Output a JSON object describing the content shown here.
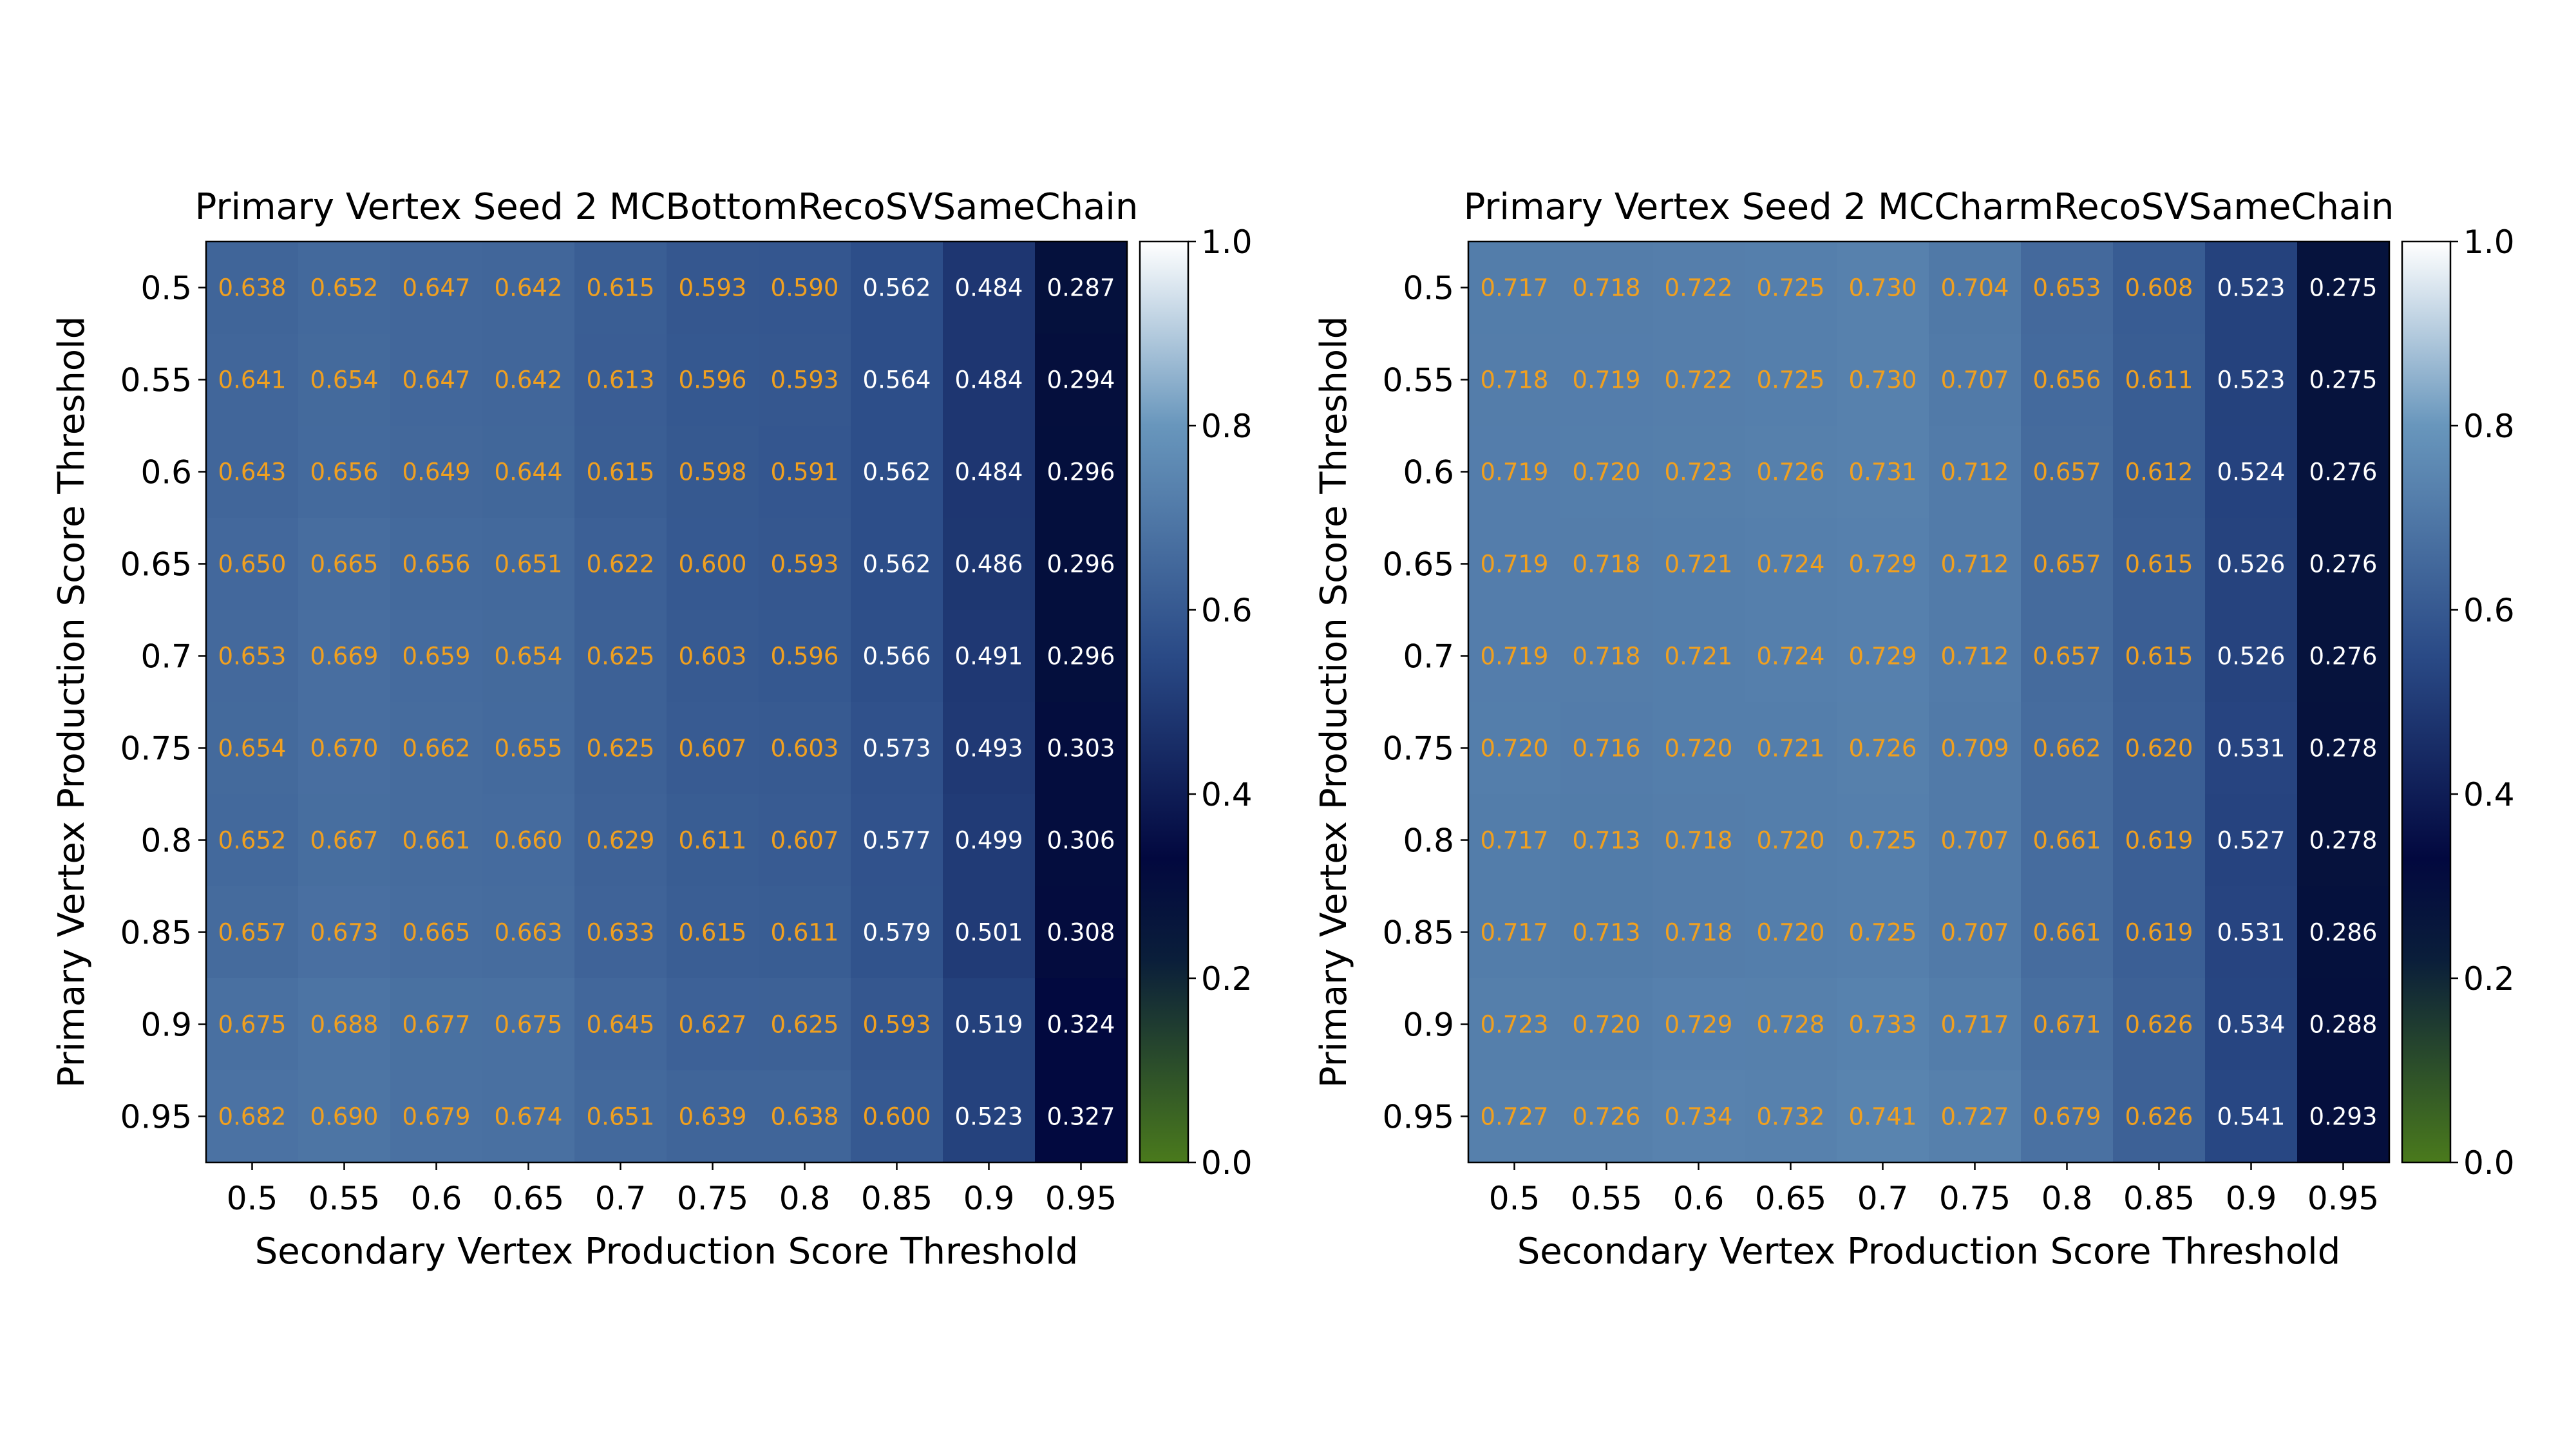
{
  "colorbar": {
    "ticks": [
      0.0,
      0.2,
      0.4,
      0.6,
      0.8,
      1.0
    ],
    "tick_labels": [
      "0.0",
      "0.2",
      "0.4",
      "0.6",
      "0.8",
      "1.0"
    ],
    "colors": [
      "#4a7a1c",
      "#0a1e3a",
      "#02083f",
      "#2a4a86",
      "#6896bc",
      "#ffffff"
    ],
    "stops": [
      0.0,
      0.22,
      0.33,
      0.55,
      0.8,
      1.0
    ]
  },
  "annotation_colors": {
    "light_cell": "#f0a020",
    "dark_cell": "#ffffff",
    "threshold": 0.58
  },
  "chart_data": [
    {
      "type": "heatmap",
      "title": "Primary Vertex Seed 2 MCBottomRecoSVSameChain",
      "xlabel": "Secondary Vertex Production Score Threshold",
      "ylabel": "Primary Vertex Production Score Threshold",
      "x_labels": [
        "0.5",
        "0.55",
        "0.6",
        "0.65",
        "0.7",
        "0.75",
        "0.8",
        "0.85",
        "0.9",
        "0.95"
      ],
      "y_labels": [
        "0.5",
        "0.55",
        "0.6",
        "0.65",
        "0.7",
        "0.75",
        "0.8",
        "0.85",
        "0.9",
        "0.95"
      ],
      "vmin": 0.0,
      "vmax": 1.0,
      "values": [
        [
          "0.638",
          "0.652",
          "0.647",
          "0.642",
          "0.615",
          "0.593",
          "0.590",
          "0.562",
          "0.484",
          "0.287"
        ],
        [
          "0.641",
          "0.654",
          "0.647",
          "0.642",
          "0.613",
          "0.596",
          "0.593",
          "0.564",
          "0.484",
          "0.294"
        ],
        [
          "0.643",
          "0.656",
          "0.649",
          "0.644",
          "0.615",
          "0.598",
          "0.591",
          "0.562",
          "0.484",
          "0.296"
        ],
        [
          "0.650",
          "0.665",
          "0.656",
          "0.651",
          "0.622",
          "0.600",
          "0.593",
          "0.562",
          "0.486",
          "0.296"
        ],
        [
          "0.653",
          "0.669",
          "0.659",
          "0.654",
          "0.625",
          "0.603",
          "0.596",
          "0.566",
          "0.491",
          "0.296"
        ],
        [
          "0.654",
          "0.670",
          "0.662",
          "0.655",
          "0.625",
          "0.607",
          "0.603",
          "0.573",
          "0.493",
          "0.303"
        ],
        [
          "0.652",
          "0.667",
          "0.661",
          "0.660",
          "0.629",
          "0.611",
          "0.607",
          "0.577",
          "0.499",
          "0.306"
        ],
        [
          "0.657",
          "0.673",
          "0.665",
          "0.663",
          "0.633",
          "0.615",
          "0.611",
          "0.579",
          "0.501",
          "0.308"
        ],
        [
          "0.675",
          "0.688",
          "0.677",
          "0.675",
          "0.645",
          "0.627",
          "0.625",
          "0.593",
          "0.519",
          "0.324"
        ],
        [
          "0.682",
          "0.690",
          "0.679",
          "0.674",
          "0.651",
          "0.639",
          "0.638",
          "0.600",
          "0.523",
          "0.327"
        ]
      ]
    },
    {
      "type": "heatmap",
      "title": "Primary Vertex Seed 2 MCCharmRecoSVSameChain",
      "xlabel": "Secondary Vertex Production Score Threshold",
      "ylabel": "Primary Vertex Production Score Threshold",
      "x_labels": [
        "0.5",
        "0.55",
        "0.6",
        "0.65",
        "0.7",
        "0.75",
        "0.8",
        "0.85",
        "0.9",
        "0.95"
      ],
      "y_labels": [
        "0.5",
        "0.55",
        "0.6",
        "0.65",
        "0.7",
        "0.75",
        "0.8",
        "0.85",
        "0.9",
        "0.95"
      ],
      "vmin": 0.0,
      "vmax": 1.0,
      "values": [
        [
          "0.717",
          "0.718",
          "0.722",
          "0.725",
          "0.730",
          "0.704",
          "0.653",
          "0.608",
          "0.523",
          "0.275"
        ],
        [
          "0.718",
          "0.719",
          "0.722",
          "0.725",
          "0.730",
          "0.707",
          "0.656",
          "0.611",
          "0.523",
          "0.275"
        ],
        [
          "0.719",
          "0.720",
          "0.723",
          "0.726",
          "0.731",
          "0.712",
          "0.657",
          "0.612",
          "0.524",
          "0.276"
        ],
        [
          "0.719",
          "0.718",
          "0.721",
          "0.724",
          "0.729",
          "0.712",
          "0.657",
          "0.615",
          "0.526",
          "0.276"
        ],
        [
          "0.719",
          "0.718",
          "0.721",
          "0.724",
          "0.729",
          "0.712",
          "0.657",
          "0.615",
          "0.526",
          "0.276"
        ],
        [
          "0.720",
          "0.716",
          "0.720",
          "0.721",
          "0.726",
          "0.709",
          "0.662",
          "0.620",
          "0.531",
          "0.278"
        ],
        [
          "0.717",
          "0.713",
          "0.718",
          "0.720",
          "0.725",
          "0.707",
          "0.661",
          "0.619",
          "0.527",
          "0.278"
        ],
        [
          "0.717",
          "0.713",
          "0.718",
          "0.720",
          "0.725",
          "0.707",
          "0.661",
          "0.619",
          "0.531",
          "0.286"
        ],
        [
          "0.723",
          "0.720",
          "0.729",
          "0.728",
          "0.733",
          "0.717",
          "0.671",
          "0.626",
          "0.534",
          "0.288"
        ],
        [
          "0.727",
          "0.726",
          "0.734",
          "0.732",
          "0.741",
          "0.727",
          "0.679",
          "0.626",
          "0.541",
          "0.293"
        ]
      ]
    }
  ]
}
